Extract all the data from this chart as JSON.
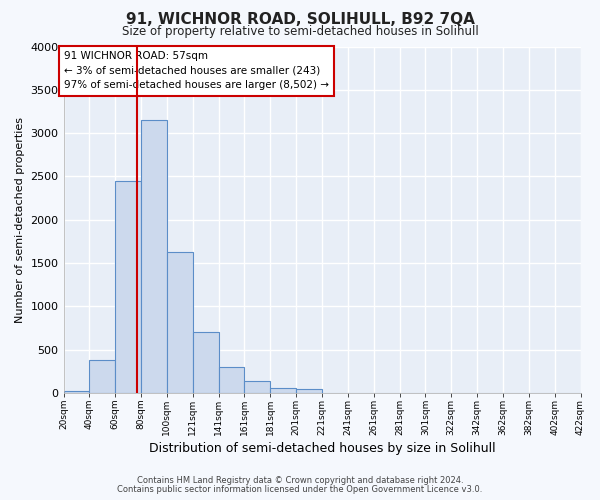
{
  "title": "91, WICHNOR ROAD, SOLIHULL, B92 7QA",
  "subtitle": "Size of property relative to semi-detached houses in Solihull",
  "xlabel": "Distribution of semi-detached houses by size in Solihull",
  "ylabel": "Number of semi-detached properties",
  "bar_values": [
    30,
    380,
    2450,
    3150,
    1630,
    700,
    300,
    140,
    60,
    50,
    0,
    0,
    0,
    0,
    0,
    0,
    0,
    0,
    0,
    0
  ],
  "bar_color": "#ccd9ed",
  "bar_edge_color": "#5b8dc8",
  "vline_position": 2.85,
  "vline_color": "#cc0000",
  "ylim": [
    0,
    4000
  ],
  "yticks": [
    0,
    500,
    1000,
    1500,
    2000,
    2500,
    3000,
    3500,
    4000
  ],
  "annotation_title": "91 WICHNOR ROAD: 57sqm",
  "annotation_line1": "← 3% of semi-detached houses are smaller (243)",
  "annotation_line2": "97% of semi-detached houses are larger (8,502) →",
  "annotation_box_color": "#ffffff",
  "annotation_box_edge": "#cc0000",
  "footer1": "Contains HM Land Registry data © Crown copyright and database right 2024.",
  "footer2": "Contains public sector information licensed under the Open Government Licence v3.0.",
  "plot_bg_color": "#e8eef7",
  "fig_bg_color": "#f5f8fd",
  "grid_color": "#ffffff",
  "tick_labels": [
    "20sqm",
    "40sqm",
    "60sqm",
    "80sqm",
    "100sqm",
    "121sqm",
    "141sqm",
    "161sqm",
    "181sqm",
    "201sqm",
    "221sqm",
    "241sqm",
    "261sqm",
    "281sqm",
    "301sqm",
    "322sqm",
    "342sqm",
    "362sqm",
    "382sqm",
    "402sqm",
    "422sqm"
  ],
  "n_bins": 20
}
